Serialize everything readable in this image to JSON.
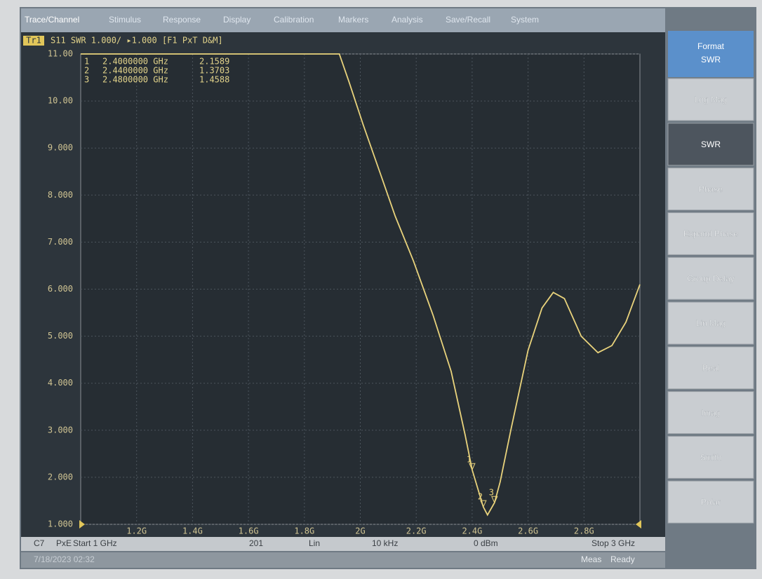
{
  "menu": [
    "Trace/Channel",
    "Stimulus",
    "Response",
    "Display",
    "Calibration",
    "Markers",
    "Analysis",
    "Save/Recall",
    "System"
  ],
  "trace_header": {
    "tag": "Tr1",
    "text": "S11 SWR 1.000/ ▸1.000 [F1 PxT D&M]"
  },
  "chart_data": {
    "type": "line",
    "x": [
      1.0,
      1.925,
      1.96,
      2.01,
      2.075,
      2.125,
      2.19,
      2.26,
      2.325,
      2.375,
      2.4,
      2.44,
      2.455,
      2.48,
      2.5,
      2.54,
      2.6,
      2.65,
      2.69,
      2.73,
      2.79,
      2.85,
      2.9,
      2.95,
      3.0
    ],
    "series": [
      {
        "name": "S11",
        "color": "#e9d37c",
        "values": [
          11,
          11,
          10.4,
          9.5,
          8.4,
          7.55,
          6.6,
          5.45,
          4.25,
          2.9,
          2.16,
          1.37,
          1.2,
          1.46,
          1.9,
          3.05,
          4.7,
          5.6,
          5.93,
          5.8,
          5.0,
          4.65,
          4.8,
          5.3,
          6.1
        ]
      }
    ],
    "xlim": [
      1,
      3
    ],
    "ylim": [
      1,
      11
    ],
    "xticks": [
      {
        "value": 1.2,
        "label": "1.2G"
      },
      {
        "value": 1.4,
        "label": "1.4G"
      },
      {
        "value": 1.6,
        "label": "1.6G"
      },
      {
        "value": 1.8,
        "label": "1.8G"
      },
      {
        "value": 2.0,
        "label": "2G"
      },
      {
        "value": 2.2,
        "label": "2.2G"
      },
      {
        "value": 2.4,
        "label": "2.4G"
      },
      {
        "value": 2.6,
        "label": "2.6G"
      },
      {
        "value": 2.8,
        "label": "2.8G"
      }
    ],
    "yticks": [
      {
        "value": 1,
        "label": "1.000"
      },
      {
        "value": 2,
        "label": "2.000"
      },
      {
        "value": 3,
        "label": "3.000"
      },
      {
        "value": 4,
        "label": "4.000"
      },
      {
        "value": 5,
        "label": "5.000"
      },
      {
        "value": 6,
        "label": "6.000"
      },
      {
        "value": 7,
        "label": "7.000"
      },
      {
        "value": 8,
        "label": "8.000"
      },
      {
        "value": 9,
        "label": "9.000"
      },
      {
        "value": 10,
        "label": "10.00"
      },
      {
        "value": 11,
        "label": "11.00"
      }
    ],
    "grid": true,
    "markers": {
      "ids": [
        "1",
        "2",
        "3"
      ],
      "x": [
        2.4,
        2.44,
        2.48
      ],
      "x_labels": [
        "2.4000000 GHz",
        "2.4400000 GHz",
        "2.4800000 GHz"
      ],
      "values": [
        2.1589,
        1.3703,
        1.4588
      ]
    }
  },
  "softkeys": {
    "header": [
      "Format",
      "SWR"
    ],
    "items": [
      "Log Mag",
      "SWR",
      "Phase",
      "Expand Phase",
      "Group Delay",
      "Lin Mag",
      "Real",
      "Imag",
      "Smith",
      "Polar"
    ],
    "selected": 1
  },
  "status": {
    "channel": "C7",
    "mode": "PxE",
    "start": "Start 1 GHz",
    "points": "201",
    "sweep": "Lin",
    "ifbw": "10 kHz",
    "power": "0 dBm",
    "stop": "Stop 3 GHz"
  },
  "footer": {
    "datetime": "7/18/2023 02:32",
    "meas": "Meas",
    "ready": "Ready"
  }
}
